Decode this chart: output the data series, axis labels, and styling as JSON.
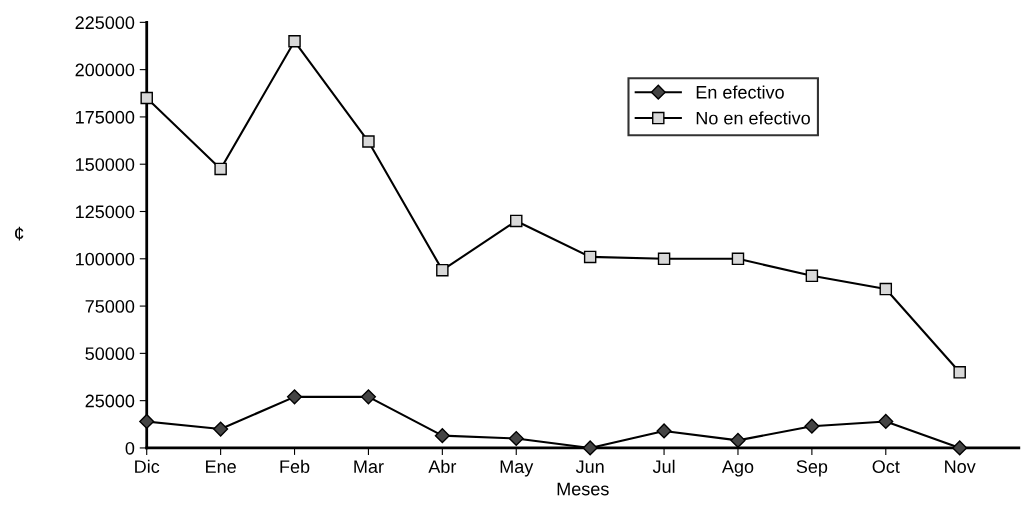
{
  "chart_data": {
    "type": "line",
    "xlabel": "Meses",
    "ylabel": "¢",
    "categories": [
      "Dic",
      "Ene",
      "Feb",
      "Mar",
      "Abr",
      "May",
      "Jun",
      "Jul",
      "Ago",
      "Sep",
      "Oct",
      "Nov"
    ],
    "series": [
      {
        "name": "En efectivo",
        "color": "#000000",
        "marker": "diamond",
        "values": [
          14000,
          10000,
          27000,
          27000,
          6500,
          5000,
          0,
          9000,
          4000,
          11500,
          14000,
          0
        ]
      },
      {
        "name": "No en efectivo",
        "color": "#000000",
        "marker": "square",
        "values": [
          185000,
          147500,
          215000,
          162000,
          94000,
          120000,
          101000,
          100000,
          100000,
          91000,
          84000,
          40000
        ]
      }
    ],
    "ylim": [
      0,
      225000
    ],
    "yticks": [
      0,
      25000,
      50000,
      75000,
      100000,
      125000,
      150000,
      175000,
      200000,
      225000
    ],
    "grid": false,
    "legend": "top right",
    "line_style": "solid"
  }
}
